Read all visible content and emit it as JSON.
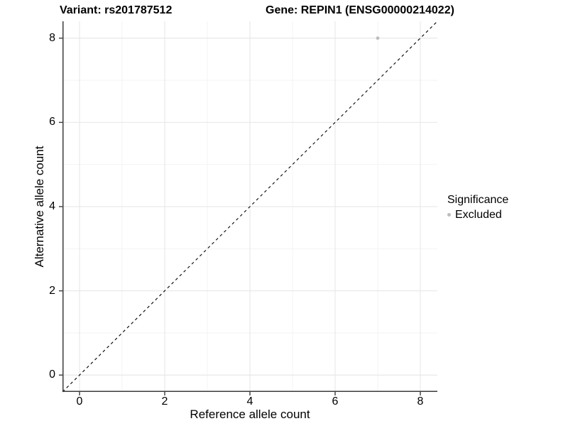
{
  "titles": {
    "variant": "Variant: rs201787512",
    "gene": "Gene: REPIN1 (ENSG00000214022)"
  },
  "axes": {
    "x": {
      "title": "Reference allele count",
      "tick_labels": [
        "0",
        "2",
        "4",
        "6",
        "8"
      ]
    },
    "y": {
      "title": "Alternative allele count",
      "tick_labels": [
        "0",
        "2",
        "4",
        "6",
        "8"
      ]
    }
  },
  "legend": {
    "title": "Significance",
    "items": [
      {
        "label": "Excluded",
        "marker": "circle",
        "color": "#bdbdbd"
      }
    ]
  },
  "colors": {
    "background": "#ffffff",
    "point": "#bdbdbd",
    "grid_major": "#e6e6e6",
    "grid_minor": "#f2f2f2",
    "axis_line": "#3c3c3c",
    "reference_line": "#000000",
    "text": "#000000"
  },
  "chart_data": {
    "type": "scatter",
    "title_left": "Variant: rs201787512",
    "title_right": "Gene: REPIN1 (ENSG00000214022)",
    "xlabel": "Reference allele count",
    "ylabel": "Alternative allele count",
    "xlim": [
      -0.4,
      8.4
    ],
    "ylim": [
      -0.4,
      8.4
    ],
    "x_ticks": [
      0,
      2,
      4,
      6,
      8
    ],
    "y_ticks": [
      0,
      2,
      4,
      6,
      8
    ],
    "x_minor": [
      1,
      3,
      5,
      7
    ],
    "y_minor": [
      1,
      3,
      5,
      7
    ],
    "grid": "major+minor",
    "legend_position": "right",
    "legend_title": "Significance",
    "series": [
      {
        "name": "Excluded",
        "color": "#bdbdbd",
        "marker_radius": 2.4,
        "points": [
          {
            "x": 7,
            "y": 8
          }
        ]
      }
    ],
    "reference_line": {
      "kind": "identity",
      "style": "dashed",
      "color": "#000000",
      "from": [
        -0.4,
        -0.4
      ],
      "to": [
        8.4,
        8.4
      ]
    }
  }
}
